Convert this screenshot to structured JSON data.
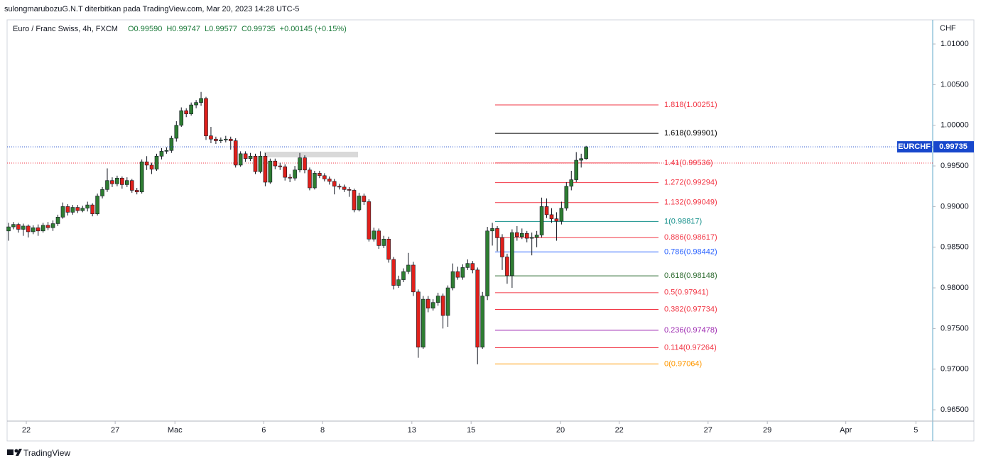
{
  "chart_data": {
    "type": "candlestick",
    "title": "sulongmarubozuG.N.T diterbitkan pada TradingView.com, Mar 20, 2023 14:28 UTC-5",
    "symbol": "Euro / Franc Swiss, 4h, FXCM",
    "legend_values": [
      "O0.99590",
      "H0.99747",
      "L0.99577",
      "C0.99735",
      "+0.00145 (+0.15%)"
    ],
    "currency": "CHF",
    "ticker": "EURCHF",
    "brand": "TradingView",
    "up_color": "#2e7d32",
    "down_color": "#e0201b",
    "open": [
      0.987,
      0.9875,
      0.9878,
      0.9872,
      0.9876,
      0.9869,
      0.9874,
      0.987,
      0.9877,
      0.9874,
      0.9879,
      0.9887,
      0.99,
      0.9893,
      0.9899,
      0.9895,
      0.9898,
      0.9902,
      0.9891,
      0.9913,
      0.9921,
      0.9932,
      0.9928,
      0.9935,
      0.9927,
      0.9932,
      0.992,
      0.9918,
      0.9955,
      0.9951,
      0.9946,
      0.9962,
      0.9968,
      0.9969,
      0.9984,
      1.0,
      1.0018,
      1.0014,
      1.0025,
      1.0028,
      1.0033,
      0.9987,
      0.9983,
      0.9981,
      0.9982,
      0.9983,
      0.9981,
      0.9951,
      0.9965,
      0.9959,
      0.9962,
      0.9943,
      0.9962,
      0.993,
      0.9956,
      0.995,
      0.9949,
      0.9936,
      0.9935,
      0.9945,
      0.996,
      0.9945,
      0.9923,
      0.9941,
      0.9938,
      0.9934,
      0.9931,
      0.9925,
      0.9924,
      0.9921,
      0.992,
      0.9896,
      0.9913,
      0.9906,
      0.986,
      0.987,
      0.9852,
      0.986,
      0.9835,
      0.9803,
      0.981,
      0.982,
      0.9828,
      0.9795,
      0.9727,
      0.9786,
      0.9775,
      0.9782,
      0.979,
      0.9766,
      0.98,
      0.982,
      0.9813,
      0.9825,
      0.983,
      0.9822,
      0.9727,
      0.979,
      0.987,
      0.9873,
      0.9862,
      0.9838,
      0.9815,
      0.9868,
      0.9863,
      0.9867,
      0.9861,
      0.9862,
      0.9865,
      0.99,
      0.989,
      0.9885,
      0.9882,
      0.9898,
      0.9925,
      0.9933,
      0.9957,
      0.9959
    ],
    "high": [
      0.988,
      0.9881,
      0.988,
      0.9879,
      0.9878,
      0.9877,
      0.9878,
      0.988,
      0.9881,
      0.9883,
      0.989,
      0.9905,
      0.9903,
      0.9902,
      0.9902,
      0.9901,
      0.9906,
      0.9904,
      0.9916,
      0.9924,
      0.9947,
      0.9936,
      0.9938,
      0.9937,
      0.9936,
      0.9934,
      0.9923,
      0.9958,
      0.9962,
      0.9954,
      0.9965,
      0.9972,
      0.9973,
      0.9987,
      1.0005,
      1.0022,
      1.0021,
      1.0028,
      1.0031,
      1.0041,
      1.0035,
      0.9998,
      0.9986,
      0.9985,
      0.9987,
      0.9986,
      0.9984,
      0.9968,
      0.9968,
      0.9966,
      0.9965,
      0.9968,
      0.9966,
      0.9959,
      0.9959,
      0.9954,
      0.9952,
      0.994,
      0.995,
      0.9966,
      0.9963,
      0.9948,
      0.9944,
      0.9944,
      0.9941,
      0.9937,
      0.9934,
      0.9928,
      0.9927,
      0.9924,
      0.9922,
      0.9917,
      0.9916,
      0.9909,
      0.9874,
      0.9873,
      0.9864,
      0.9863,
      0.9838,
      0.9815,
      0.9824,
      0.9843,
      0.9832,
      0.9798,
      0.979,
      0.979,
      0.9786,
      0.9794,
      0.9793,
      0.9803,
      0.983,
      0.9826,
      0.9829,
      0.9835,
      0.9833,
      0.9825,
      0.9795,
      0.9875,
      0.988,
      0.9876,
      0.9866,
      0.9842,
      0.9872,
      0.9876,
      0.9873,
      0.987,
      0.9868,
      0.987,
      0.9911,
      0.991,
      0.9898,
      0.9893,
      0.9906,
      0.993,
      0.9944,
      0.9967,
      0.9965,
      0.99747
    ],
    "low": [
      0.9858,
      0.9872,
      0.9868,
      0.9864,
      0.9862,
      0.9866,
      0.9864,
      0.9868,
      0.9871,
      0.987,
      0.9876,
      0.9885,
      0.9889,
      0.989,
      0.9892,
      0.9893,
      0.9894,
      0.9888,
      0.9889,
      0.991,
      0.9918,
      0.9924,
      0.9925,
      0.9922,
      0.9924,
      0.9917,
      0.9915,
      0.9916,
      0.9945,
      0.994,
      0.9944,
      0.9958,
      0.9965,
      0.9966,
      0.998,
      0.9998,
      1.001,
      1.0012,
      1.0021,
      1.0024,
      0.9982,
      0.9978,
      0.9977,
      0.9978,
      0.9979,
      0.997,
      0.9948,
      0.9949,
      0.9955,
      0.9956,
      0.994,
      0.9941,
      0.9925,
      0.9928,
      0.9946,
      0.9945,
      0.9932,
      0.993,
      0.9932,
      0.9942,
      0.9941,
      0.992,
      0.9921,
      0.9935,
      0.9931,
      0.9927,
      0.9915,
      0.9921,
      0.9918,
      0.9912,
      0.9893,
      0.9894,
      0.9902,
      0.9857,
      0.9857,
      0.9848,
      0.9849,
      0.9831,
      0.9798,
      0.98,
      0.9807,
      0.9817,
      0.979,
      0.9714,
      0.9725,
      0.977,
      0.9772,
      0.9778,
      0.975,
      0.9752,
      0.9797,
      0.981,
      0.981,
      0.9822,
      0.9818,
      0.9706,
      0.9725,
      0.9785,
      0.9852,
      0.9845,
      0.9822,
      0.9805,
      0.98,
      0.9858,
      0.986,
      0.9856,
      0.984,
      0.985,
      0.9862,
      0.9886,
      0.988,
      0.9858,
      0.9878,
      0.9895,
      0.992,
      0.993,
      0.9948,
      0.99577
    ],
    "close": [
      0.9875,
      0.9878,
      0.9872,
      0.9876,
      0.9869,
      0.9874,
      0.987,
      0.9877,
      0.9874,
      0.9879,
      0.9887,
      0.99,
      0.9893,
      0.9899,
      0.9895,
      0.9898,
      0.9902,
      0.9891,
      0.9913,
      0.9921,
      0.9932,
      0.9928,
      0.9935,
      0.9927,
      0.9932,
      0.992,
      0.9918,
      0.9955,
      0.9951,
      0.9946,
      0.9962,
      0.9968,
      0.9969,
      0.9984,
      1.0,
      1.0018,
      1.0014,
      1.0025,
      1.0028,
      1.0033,
      0.9987,
      0.9983,
      0.9981,
      0.9982,
      0.9983,
      0.9981,
      0.9951,
      0.9965,
      0.9959,
      0.9962,
      0.9943,
      0.9962,
      0.993,
      0.9956,
      0.995,
      0.9949,
      0.9936,
      0.9935,
      0.9945,
      0.996,
      0.9945,
      0.9923,
      0.9941,
      0.9938,
      0.9934,
      0.9931,
      0.9925,
      0.9924,
      0.9921,
      0.992,
      0.9896,
      0.9913,
      0.9906,
      0.986,
      0.987,
      0.9852,
      0.986,
      0.9835,
      0.9803,
      0.981,
      0.982,
      0.9828,
      0.9795,
      0.9727,
      0.9786,
      0.9775,
      0.9782,
      0.979,
      0.9766,
      0.98,
      0.982,
      0.9813,
      0.9825,
      0.983,
      0.9822,
      0.9727,
      0.979,
      0.987,
      0.9873,
      0.9862,
      0.9838,
      0.9815,
      0.9868,
      0.9863,
      0.9867,
      0.9861,
      0.9862,
      0.9865,
      0.99,
      0.989,
      0.9885,
      0.9882,
      0.9898,
      0.9925,
      0.9933,
      0.9957,
      0.9959,
      0.99735
    ],
    "xlim": [
      -0.29,
      187.2
    ],
    "xticks": [
      {
        "value": 3.6,
        "label": "22"
      },
      {
        "value": 21.6,
        "label": "27"
      },
      {
        "value": 33.7,
        "label": "Mac"
      },
      {
        "value": 51.7,
        "label": "6"
      },
      {
        "value": 63.6,
        "label": "8"
      },
      {
        "value": 81.7,
        "label": "13"
      },
      {
        "value": 93.7,
        "label": "15"
      },
      {
        "value": 111.8,
        "label": "20"
      },
      {
        "value": 123.7,
        "label": "22"
      },
      {
        "value": 141.7,
        "label": "27"
      },
      {
        "value": 153.7,
        "label": "29"
      },
      {
        "value": 169.6,
        "label": "Apr"
      },
      {
        "value": 183.8,
        "label": "5"
      }
    ],
    "ylim": [
      0.96361,
      1.01297
    ],
    "yticks": [
      {
        "value": 1.01,
        "label": "1.01000"
      },
      {
        "value": 1.005,
        "label": "1.00500"
      },
      {
        "value": 1.0,
        "label": "1.00000"
      },
      {
        "value": 0.995,
        "label": "0.99500"
      },
      {
        "value": 0.99,
        "label": "0.99000"
      },
      {
        "value": 0.985,
        "label": "0.98500"
      },
      {
        "value": 0.98,
        "label": "0.98000"
      },
      {
        "value": 0.975,
        "label": "0.97500"
      },
      {
        "value": 0.97,
        "label": "0.97000"
      },
      {
        "value": 0.965,
        "label": "0.96500"
      }
    ],
    "fib_levels": [
      {
        "value": 1.00251,
        "label": "1.818(1.00251)",
        "color": "#f23645"
      },
      {
        "value": 0.99901,
        "label": "1.618(0.99901)",
        "color": "#000000"
      },
      {
        "value": 0.99536,
        "label": "1.41(0.99536)",
        "color": "#f23645"
      },
      {
        "value": 0.99294,
        "label": "1.272(0.99294)",
        "color": "#f23645"
      },
      {
        "value": 0.99049,
        "label": "1.132(0.99049)",
        "color": "#f23645"
      },
      {
        "value": 0.98817,
        "label": "1(0.98817)",
        "color": "#138f8a"
      },
      {
        "value": 0.98617,
        "label": "0.886(0.98617)",
        "color": "#f23645"
      },
      {
        "value": 0.98442,
        "label": "0.786(0.98442)",
        "color": "#2962ff"
      },
      {
        "value": 0.98148,
        "label": "0.618(0.98148)",
        "color": "#2e6b30"
      },
      {
        "value": 0.97941,
        "label": "0.5(0.97941)",
        "color": "#f23645"
      },
      {
        "value": 0.97734,
        "label": "0.382(0.97734)",
        "color": "#f23645"
      },
      {
        "value": 0.97478,
        "label": "0.236(0.97478)",
        "color": "#9c27b0"
      },
      {
        "value": 0.97264,
        "label": "0.114(0.97264)",
        "color": "#f23645"
      },
      {
        "value": 0.97064,
        "label": "0(0.97064)",
        "color": "#ff9800"
      }
    ]
  }
}
